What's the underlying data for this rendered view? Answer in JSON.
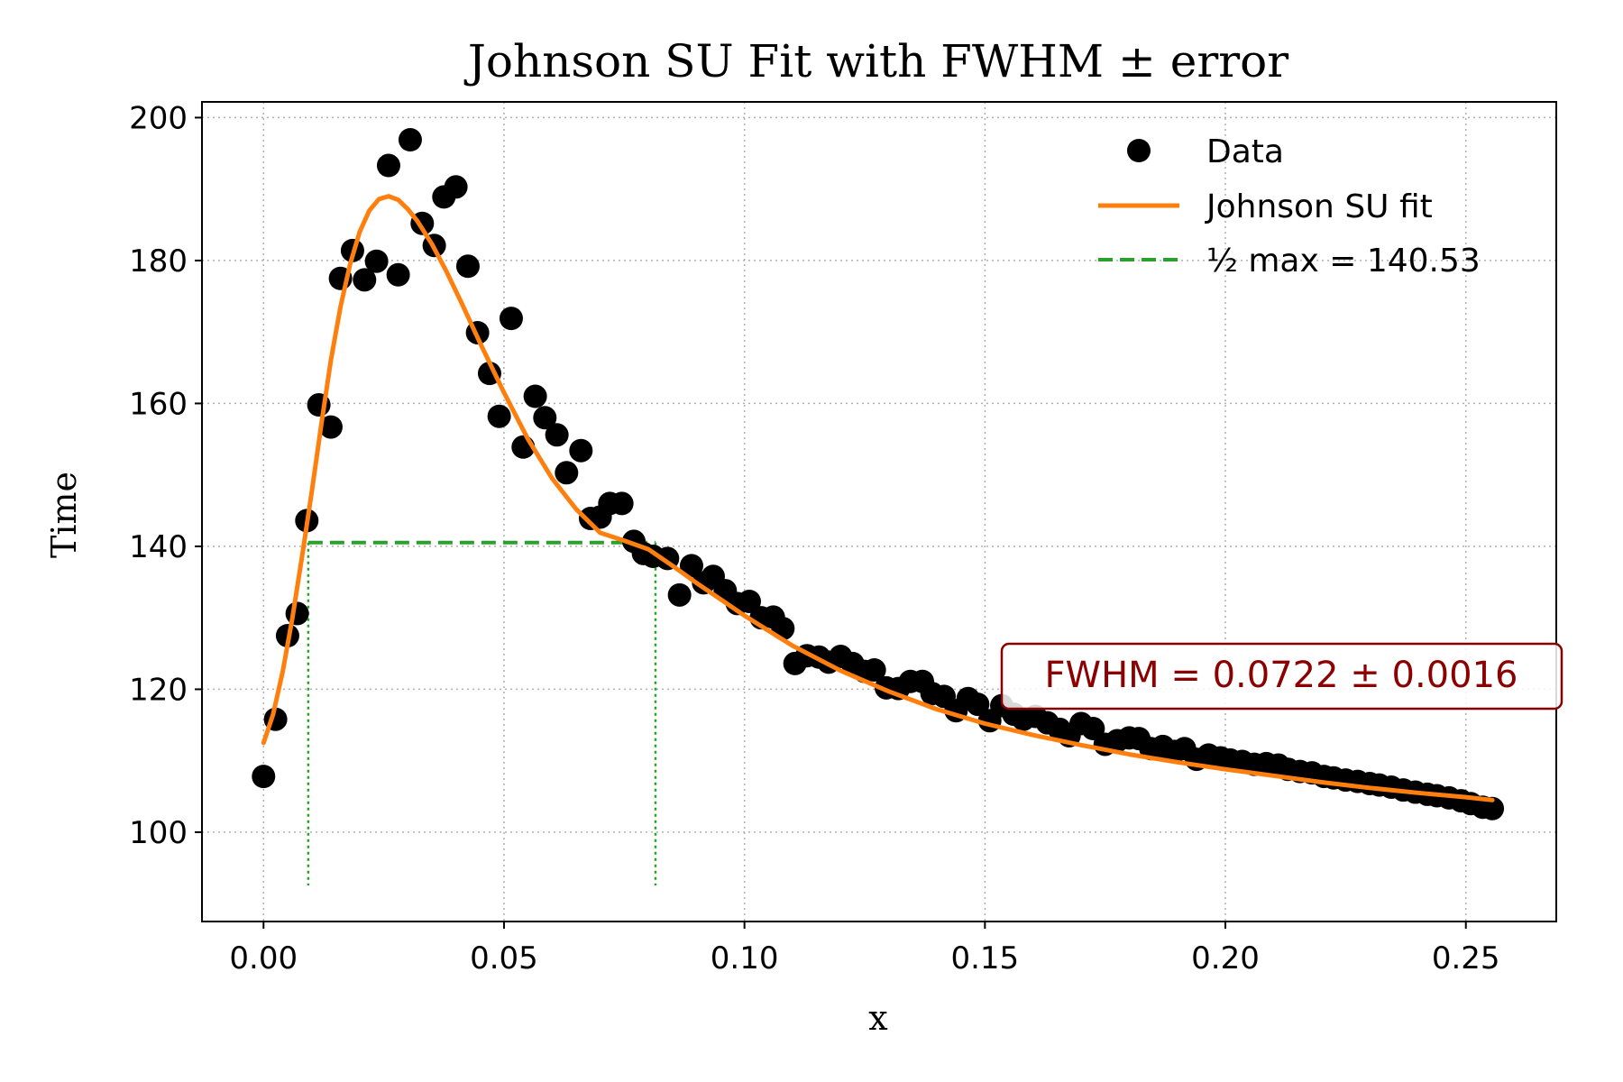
{
  "chart_data": {
    "type": "scatter",
    "title": "Johnson SU Fit with FWHM ± error",
    "xlabel": "x",
    "ylabel": "Time",
    "xlim": [
      -0.0128,
      0.2688
    ],
    "ylim": [
      87.5,
      202.2
    ],
    "xticks": [
      0.0,
      0.05,
      0.1,
      0.15,
      0.2,
      0.25
    ],
    "xtick_labels": [
      "0.00",
      "0.05",
      "0.10",
      "0.15",
      "0.20",
      "0.25"
    ],
    "yticks": [
      100,
      120,
      140,
      160,
      180,
      200
    ],
    "ytick_labels": [
      "100",
      "120",
      "140",
      "160",
      "180",
      "200"
    ],
    "grid": true,
    "legend": {
      "position": "top-right",
      "entries": [
        {
          "label": "Data",
          "kind": "marker",
          "color": "#000000"
        },
        {
          "label": "Johnson SU fit",
          "kind": "line",
          "color": "#ff7f0e"
        },
        {
          "label": "½ max = 140.53",
          "kind": "dashed",
          "color": "#2ca02c"
        }
      ]
    },
    "series": [
      {
        "name": "Data",
        "kind": "scatter",
        "color": "#000000",
        "x": [
          0.0,
          0.0025,
          0.005,
          0.007,
          0.009,
          0.0115,
          0.014,
          0.016,
          0.0185,
          0.021,
          0.0235,
          0.026,
          0.028,
          0.0305,
          0.033,
          0.0355,
          0.0375,
          0.04,
          0.0425,
          0.0445,
          0.047,
          0.049,
          0.0515,
          0.054,
          0.0565,
          0.0585,
          0.061,
          0.063,
          0.066,
          0.068,
          0.07,
          0.072,
          0.0745,
          0.077,
          0.079,
          0.081,
          0.084,
          0.0865,
          0.089,
          0.0915,
          0.0935,
          0.096,
          0.0985,
          0.101,
          0.1035,
          0.106,
          0.108,
          0.1105,
          0.113,
          0.1155,
          0.1175,
          0.12,
          0.1225,
          0.125,
          0.127,
          0.1295,
          0.132,
          0.1345,
          0.137,
          0.139,
          0.1415,
          0.144,
          0.1465,
          0.1485,
          0.151,
          0.1535,
          0.156,
          0.158,
          0.1605,
          0.163,
          0.1655,
          0.1675,
          0.17,
          0.1725,
          0.175,
          0.1775,
          0.18,
          0.182,
          0.1845,
          0.187,
          0.1895,
          0.1915,
          0.194,
          0.1965,
          0.199,
          0.201,
          0.2035,
          0.206,
          0.2085,
          0.211,
          0.213,
          0.2155,
          0.218,
          0.2205,
          0.2225,
          0.225,
          0.2275,
          0.23,
          0.232,
          0.2345,
          0.237,
          0.2395,
          0.242,
          0.244,
          0.2465,
          0.249,
          0.251,
          0.2535,
          0.2555
        ],
        "y": [
          107.8,
          115.8,
          127.5,
          130.6,
          143.6,
          159.8,
          156.7,
          177.5,
          181.4,
          177.3,
          179.9,
          193.3,
          178.0,
          196.9,
          185.2,
          182.1,
          188.9,
          190.3,
          179.2,
          169.9,
          164.2,
          158.2,
          171.9,
          153.9,
          161.0,
          158.0,
          155.6,
          150.3,
          153.4,
          143.9,
          144.1,
          146.0,
          146.0,
          140.7,
          139.0,
          138.6,
          138.3,
          133.2,
          137.3,
          134.9,
          135.8,
          133.8,
          132.0,
          132.3,
          130.0,
          130.1,
          128.5,
          123.6,
          124.7,
          124.5,
          123.8,
          124.6,
          123.6,
          122.5,
          122.7,
          120.2,
          120.1,
          121.1,
          121.1,
          119.4,
          119.0,
          117.0,
          118.7,
          117.9,
          115.6,
          117.7,
          116.5,
          115.8,
          116.2,
          115.3,
          114.4,
          113.5,
          115.2,
          114.5,
          112.3,
          112.8,
          113.2,
          113.1,
          111.7,
          112.0,
          111.3,
          111.7,
          110.2,
          110.8,
          110.4,
          110.1,
          109.9,
          109.5,
          109.6,
          109.4,
          108.8,
          108.5,
          108.3,
          107.8,
          107.6,
          107.3,
          107.1,
          106.8,
          106.6,
          106.3,
          105.9,
          105.6,
          105.3,
          105.1,
          104.8,
          104.4,
          104.0,
          103.5,
          103.3
        ]
      },
      {
        "name": "Johnson SU fit",
        "kind": "line",
        "color": "#ff7f0e",
        "x": [
          0.0,
          0.002,
          0.004,
          0.006,
          0.008,
          0.01,
          0.012,
          0.014,
          0.016,
          0.018,
          0.02,
          0.022,
          0.024,
          0.026,
          0.028,
          0.03,
          0.032,
          0.035,
          0.038,
          0.041,
          0.045,
          0.05,
          0.055,
          0.06,
          0.065,
          0.07,
          0.075,
          0.08,
          0.085,
          0.09,
          0.095,
          0.1,
          0.105,
          0.11,
          0.12,
          0.13,
          0.14,
          0.15,
          0.16,
          0.17,
          0.18,
          0.19,
          0.2,
          0.21,
          0.22,
          0.23,
          0.24,
          0.25,
          0.2555
        ],
        "y": [
          112.5,
          116.5,
          122.5,
          130.0,
          138.5,
          147.5,
          157.0,
          166.0,
          173.5,
          179.5,
          184.0,
          187.0,
          188.6,
          189.0,
          188.5,
          187.2,
          185.5,
          182.3,
          178.5,
          174.3,
          168.5,
          161.5,
          155.0,
          149.5,
          145.2,
          141.9,
          140.8,
          139.6,
          137.3,
          134.9,
          132.6,
          130.3,
          128.2,
          126.1,
          122.6,
          119.7,
          117.2,
          115.2,
          113.6,
          112.2,
          110.9,
          109.8,
          108.8,
          107.9,
          107.0,
          106.2,
          105.5,
          104.9,
          104.5
        ]
      }
    ],
    "half_max": {
      "value": 140.53,
      "x_left": 0.0093,
      "x_right": 0.0815,
      "color": "#2ca02c"
    },
    "annotation": {
      "text": "FWHM = 0.0722 ± 0.0016",
      "color": "#8b0000"
    }
  }
}
